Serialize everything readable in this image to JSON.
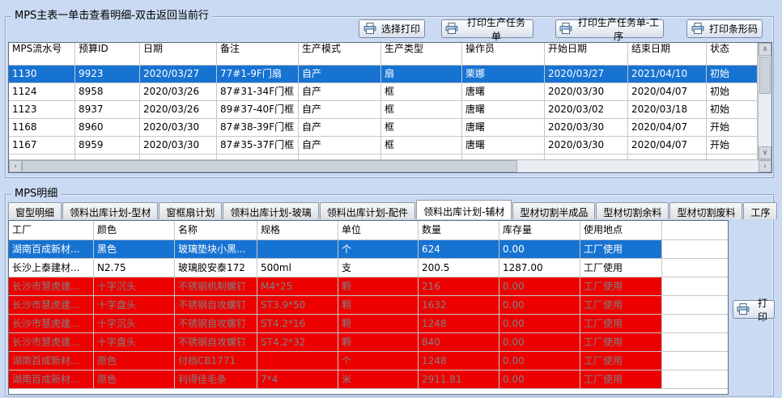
{
  "colors": {
    "window_bg": "#c9daf2",
    "selected_row_bg": "#1773d2",
    "alert_row_bg": "#ec0000",
    "alert_row_text": "#808080"
  },
  "mps_master": {
    "title": "MPS主表一单击查看明细-双击返回当前行",
    "buttons": [
      {
        "label": "选择打印"
      },
      {
        "label": "打印生产任务单"
      },
      {
        "label": "打印生产任务单-工序"
      },
      {
        "label": "打印条形码"
      }
    ],
    "table": {
      "columns": [
        "MPS流水号",
        "预算ID",
        "日期",
        "备注",
        "生产模式",
        "生产类型",
        "操作员",
        "开始日期",
        "结束日期",
        "状态"
      ],
      "selected_row_index": 0,
      "rows": [
        [
          "1130",
          "9923",
          "2020/03/27",
          "77#1-9F门扇",
          "自产",
          "扇",
          "栗娜",
          "2020/03/27",
          "2021/04/10",
          "初始"
        ],
        [
          "1124",
          "8958",
          "2020/03/26",
          "87#31-34F门框",
          "自产",
          "框",
          "唐曙",
          "2020/03/30",
          "2020/04/07",
          "初始"
        ],
        [
          "1123",
          "8937",
          "2020/03/26",
          "89#37-40F门框",
          "自产",
          "框",
          "唐曙",
          "2020/03/02",
          "2020/03/18",
          "初始"
        ],
        [
          "1168",
          "8960",
          "2020/03/30",
          "87#38-39F门框",
          "自产",
          "框",
          "唐曙",
          "2020/03/30",
          "2020/04/07",
          "开始"
        ],
        [
          "1167",
          "8959",
          "2020/03/30",
          "87#35-37F门框",
          "自产",
          "框",
          "唐曙",
          "2020/03/30",
          "2020/04/07",
          "开始"
        ]
      ]
    }
  },
  "mps_detail": {
    "title": "MPS明细",
    "tabs": [
      "窗型明细",
      "领料出库计划-型材",
      "窗框扇计划",
      "领料出库计划-玻璃",
      "领料出库计划-配件",
      "领料出库计划-辅材",
      "型材切割半成品",
      "型材切割余料",
      "型材切割废料",
      "工序"
    ],
    "active_tab_index": 5,
    "table": {
      "columns": [
        "工厂",
        "颜色",
        "名称",
        "规格",
        "单位",
        "数量",
        "库存量",
        "使用地点"
      ],
      "rows": [
        {
          "state": "selected",
          "cells": [
            "湖南百成新材...",
            "黑色",
            "玻璃垫块小黑...",
            "",
            "个",
            "624",
            "0.00",
            "工厂使用"
          ]
        },
        {
          "state": "normal",
          "cells": [
            "长沙上泰建材...",
            "N2.75",
            "玻璃胶安泰172",
            "500ml",
            "支",
            "200.5",
            "1287.00",
            "工厂使用"
          ]
        },
        {
          "state": "alert",
          "cells": [
            "长沙市慧虎建...",
            "十字沉头",
            "不锈钢机制螺钉",
            "M4*25",
            "颗",
            "216",
            "0.00",
            "工厂使用"
          ]
        },
        {
          "state": "alert",
          "cells": [
            "长沙市慧虎建...",
            "十字盘头",
            "不锈钢自攻螺钉",
            "ST3.9*50",
            "颗",
            "1632",
            "0.00",
            "工厂使用"
          ]
        },
        {
          "state": "alert",
          "cells": [
            "长沙市慧虎建...",
            "十字沉头",
            "不锈钢自攻螺钉",
            "ST4.2*16",
            "颗",
            "1248",
            "0.00",
            "工厂使用"
          ]
        },
        {
          "state": "alert",
          "cells": [
            "长沙市慧虎建...",
            "十字盘头",
            "不锈钢自攻螺钉",
            "ST4.2*32",
            "颗",
            "840",
            "0.00",
            "工厂使用"
          ]
        },
        {
          "state": "alert",
          "cells": [
            "湖南百成新材...",
            "原色",
            "付档CB1771",
            "",
            "个",
            "1248",
            "0.00",
            "工厂使用"
          ]
        },
        {
          "state": "alert",
          "cells": [
            "湖南百成新材...",
            "原色",
            "利得佳毛条",
            "7*4",
            "米",
            "2911.81",
            "0.00",
            "工厂使用"
          ]
        }
      ]
    },
    "print_button": {
      "label": "打印"
    }
  }
}
